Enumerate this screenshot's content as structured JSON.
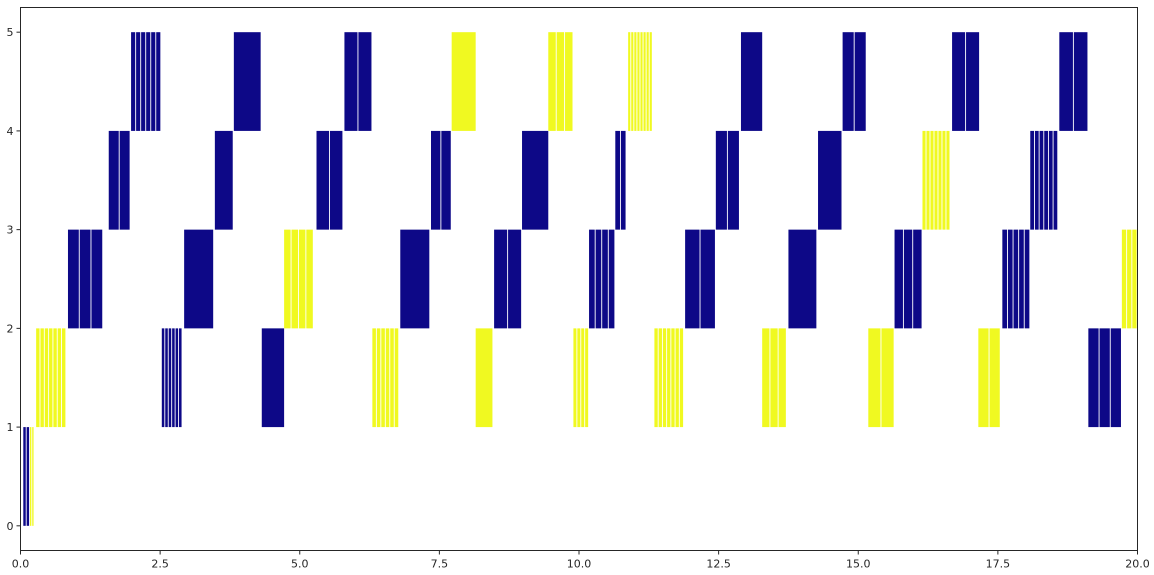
{
  "chart_data": {
    "type": "bar",
    "title": "",
    "xlabel": "",
    "ylabel": "",
    "xlim": [
      0,
      20
    ],
    "ylim": [
      -0.25,
      5.25
    ],
    "grid": false,
    "legend": null,
    "colors": {
      "low": "#0d0887",
      "high": "#f0f921"
    },
    "x_ticks": [
      "0.0",
      "2.5",
      "5.0",
      "7.5",
      "10.0",
      "12.5",
      "15.0",
      "17.5",
      "20.0"
    ],
    "y_ticks": [
      "0",
      "1",
      "2",
      "3",
      "4",
      "5"
    ],
    "segments": [
      {
        "y0": 0,
        "y1": 1,
        "x0": 0.05,
        "x1": 0.17,
        "color": "low",
        "slices": 2
      },
      {
        "y0": 0,
        "y1": 1,
        "x0": 0.17,
        "x1": 0.25,
        "color": "high",
        "slices": 2
      },
      {
        "y0": 1,
        "y1": 2,
        "x0": 0.28,
        "x1": 0.82,
        "color": "high",
        "slices": 7
      },
      {
        "y0": 2,
        "y1": 3,
        "x0": 0.85,
        "x1": 1.48,
        "color": "low",
        "slices": 3
      },
      {
        "y0": 3,
        "y1": 4,
        "x0": 1.58,
        "x1": 1.97,
        "color": "low",
        "slices": 2
      },
      {
        "y0": 4,
        "y1": 5,
        "x0": 1.98,
        "x1": 2.52,
        "color": "low",
        "slices": 6
      },
      {
        "y0": 1,
        "y1": 2,
        "x0": 2.53,
        "x1": 2.9,
        "color": "low",
        "slices": 6
      },
      {
        "y0": 2,
        "y1": 3,
        "x0": 2.93,
        "x1": 3.45,
        "color": "low",
        "slices": 1
      },
      {
        "y0": 3,
        "y1": 4,
        "x0": 3.48,
        "x1": 3.8,
        "color": "low",
        "slices": 1
      },
      {
        "y0": 4,
        "y1": 5,
        "x0": 3.82,
        "x1": 4.3,
        "color": "low",
        "slices": 1
      },
      {
        "y0": 1,
        "y1": 2,
        "x0": 4.32,
        "x1": 4.72,
        "color": "low",
        "slices": 1
      },
      {
        "y0": 2,
        "y1": 3,
        "x0": 4.72,
        "x1": 5.25,
        "color": "high",
        "slices": 4
      },
      {
        "y0": 3,
        "y1": 4,
        "x0": 5.3,
        "x1": 5.78,
        "color": "low",
        "slices": 2
      },
      {
        "y0": 4,
        "y1": 5,
        "x0": 5.8,
        "x1": 6.3,
        "color": "low",
        "slices": 2
      },
      {
        "y0": 1,
        "y1": 2,
        "x0": 6.3,
        "x1": 6.78,
        "color": "high",
        "slices": 6
      },
      {
        "y0": 2,
        "y1": 3,
        "x0": 6.8,
        "x1": 7.32,
        "color": "low",
        "slices": 1
      },
      {
        "y0": 3,
        "y1": 4,
        "x0": 7.35,
        "x1": 7.72,
        "color": "low",
        "slices": 2
      },
      {
        "y0": 4,
        "y1": 5,
        "x0": 7.72,
        "x1": 8.15,
        "color": "high",
        "slices": 1
      },
      {
        "y0": 1,
        "y1": 2,
        "x0": 8.15,
        "x1": 8.45,
        "color": "high",
        "slices": 1
      },
      {
        "y0": 2,
        "y1": 3,
        "x0": 8.48,
        "x1": 8.98,
        "color": "low",
        "slices": 2
      },
      {
        "y0": 3,
        "y1": 4,
        "x0": 8.98,
        "x1": 9.45,
        "color": "low",
        "slices": 1
      },
      {
        "y0": 4,
        "y1": 5,
        "x0": 9.45,
        "x1": 9.9,
        "color": "high",
        "slices": 3
      },
      {
        "y0": 1,
        "y1": 2,
        "x0": 9.9,
        "x1": 10.18,
        "color": "high",
        "slices": 4
      },
      {
        "y0": 2,
        "y1": 3,
        "x0": 10.18,
        "x1": 10.65,
        "color": "low",
        "slices": 4
      },
      {
        "y0": 3,
        "y1": 4,
        "x0": 10.65,
        "x1": 10.85,
        "color": "low",
        "slices": 2
      },
      {
        "y0": 4,
        "y1": 5,
        "x0": 10.88,
        "x1": 11.32,
        "color": "high",
        "slices": 8
      },
      {
        "y0": 1,
        "y1": 2,
        "x0": 11.35,
        "x1": 11.88,
        "color": "high",
        "slices": 7
      },
      {
        "y0": 2,
        "y1": 3,
        "x0": 11.9,
        "x1": 12.45,
        "color": "low",
        "slices": 2
      },
      {
        "y0": 3,
        "y1": 4,
        "x0": 12.45,
        "x1": 12.88,
        "color": "low",
        "slices": 2
      },
      {
        "y0": 4,
        "y1": 5,
        "x0": 12.9,
        "x1": 13.28,
        "color": "low",
        "slices": 1
      },
      {
        "y0": 1,
        "y1": 2,
        "x0": 13.28,
        "x1": 13.72,
        "color": "high",
        "slices": 3
      },
      {
        "y0": 2,
        "y1": 3,
        "x0": 13.75,
        "x1": 14.25,
        "color": "low",
        "slices": 1
      },
      {
        "y0": 3,
        "y1": 4,
        "x0": 14.28,
        "x1": 14.7,
        "color": "low",
        "slices": 1
      },
      {
        "y0": 4,
        "y1": 5,
        "x0": 14.72,
        "x1": 15.15,
        "color": "low",
        "slices": 2
      },
      {
        "y0": 1,
        "y1": 2,
        "x0": 15.18,
        "x1": 15.65,
        "color": "high",
        "slices": 2
      },
      {
        "y0": 2,
        "y1": 3,
        "x0": 15.65,
        "x1": 16.15,
        "color": "low",
        "slices": 3
      },
      {
        "y0": 3,
        "y1": 4,
        "x0": 16.15,
        "x1": 16.65,
        "color": "high",
        "slices": 7
      },
      {
        "y0": 4,
        "y1": 5,
        "x0": 16.68,
        "x1": 17.18,
        "color": "low",
        "slices": 2
      },
      {
        "y0": 1,
        "y1": 2,
        "x0": 17.15,
        "x1": 17.55,
        "color": "high",
        "slices": 2
      },
      {
        "y0": 2,
        "y1": 3,
        "x0": 17.58,
        "x1": 18.08,
        "color": "low",
        "slices": 5
      },
      {
        "y0": 3,
        "y1": 4,
        "x0": 18.08,
        "x1": 18.58,
        "color": "low",
        "slices": 6
      },
      {
        "y0": 4,
        "y1": 5,
        "x0": 18.6,
        "x1": 19.12,
        "color": "low",
        "slices": 2
      },
      {
        "y0": 1,
        "y1": 2,
        "x0": 19.12,
        "x1": 19.72,
        "color": "low",
        "slices": 3
      },
      {
        "y0": 2,
        "y1": 3,
        "x0": 19.72,
        "x1": 20.0,
        "color": "high",
        "slices": 3
      }
    ]
  }
}
